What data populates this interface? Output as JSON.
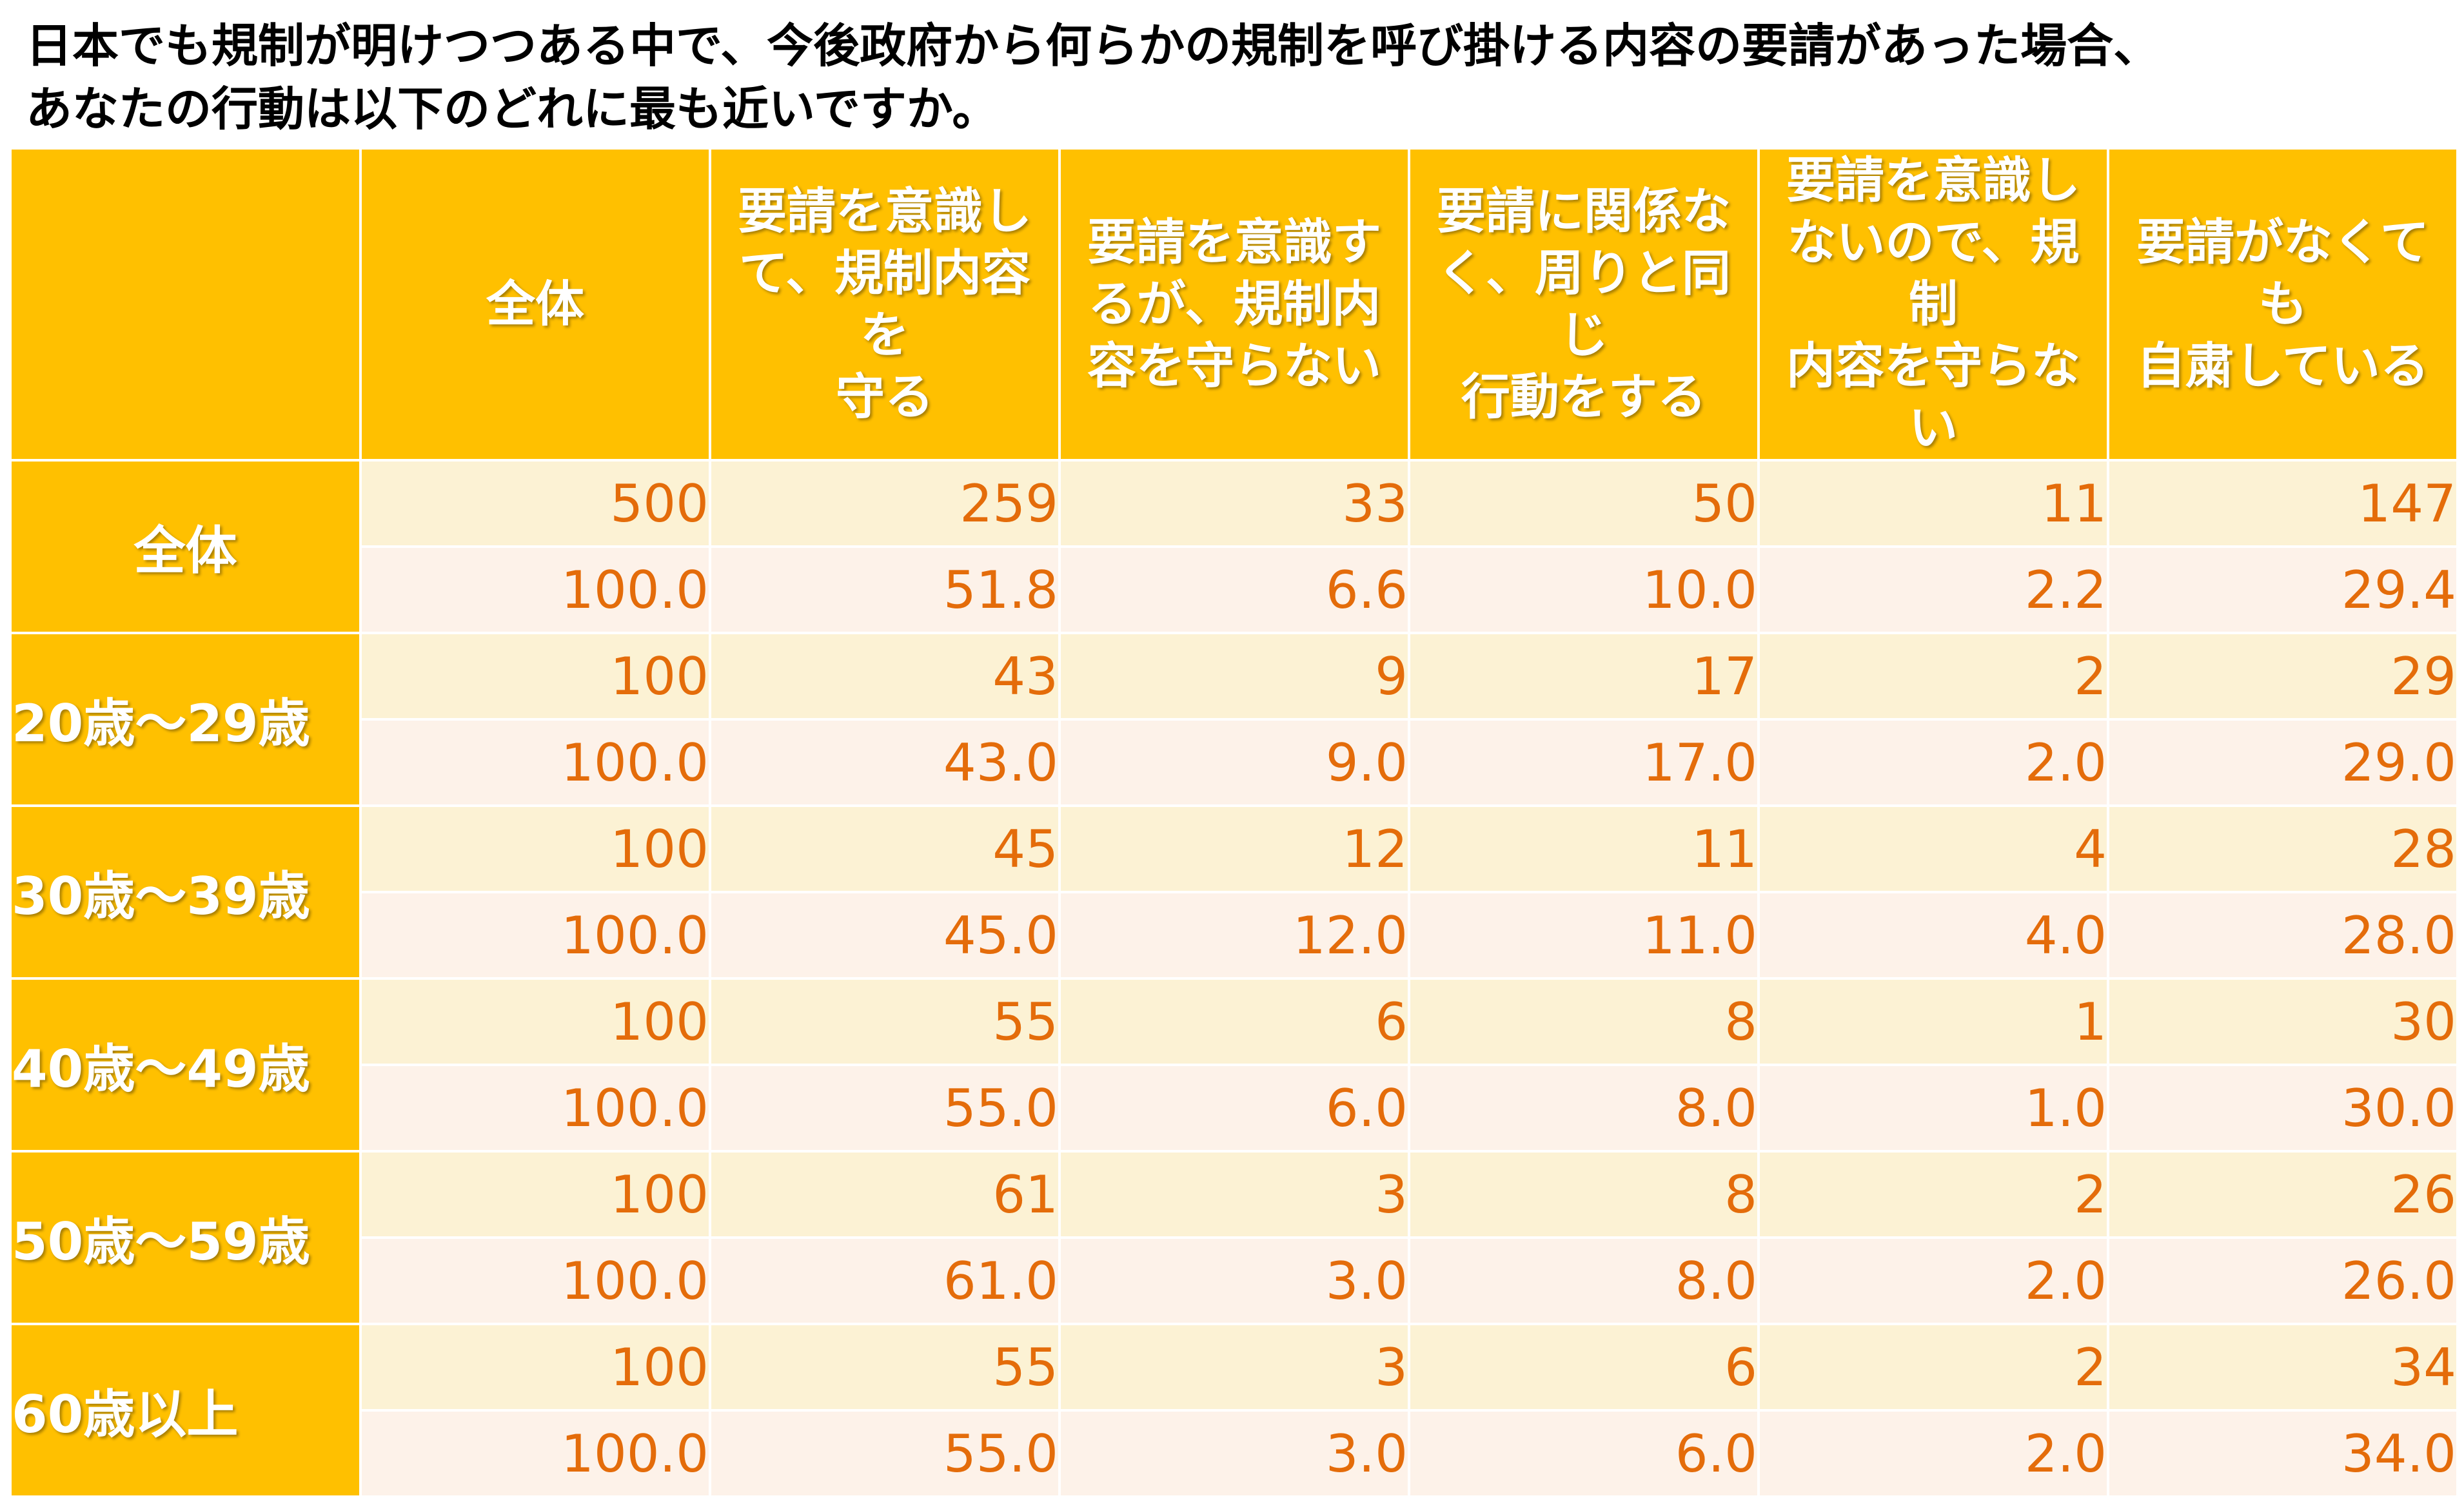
{
  "chart_data": {
    "type": "table",
    "title": "日本でも規制が明けつつある中で、今後政府から何らかの規制を呼び掛ける内容の要請があった場合、あなたの行動は以下のどれに最も近いですか。",
    "title_lines": [
      "日本でも規制が明けつつある中で、今後政府から何らかの規制を呼び掛ける内容の要請があった場合、",
      "あなたの行動は以下のどれに最も近いですか。"
    ],
    "columns": [
      "全体",
      "要請を意識して、規制内容を守る",
      "要請を意識するが、規制内容を守らない",
      "要請に関係なく、周りと同じ行動をする",
      "要請を意識しないので、規制内容を守らない",
      "要請がなくても自粛している"
    ],
    "columns_display": [
      "全体",
      "要請を意識し\nて、規制内容を\n守る",
      "要請を意識す\nるが、規制内\n容を守らない",
      "要請に関係な\nく、周りと同じ\n行動をする",
      "要請を意識し\nないので、規制\n内容を守らな\nい",
      "要請がなくても\n自粛している"
    ],
    "rows": [
      {
        "label": "全体",
        "counts": [
          "500",
          "259",
          "33",
          "50",
          "11",
          "147"
        ],
        "percents": [
          "100.0",
          "51.8",
          "6.6",
          "10.0",
          "2.2",
          "29.4"
        ]
      },
      {
        "label": "20歳～29歳",
        "counts": [
          "100",
          "43",
          "9",
          "17",
          "2",
          "29"
        ],
        "percents": [
          "100.0",
          "43.0",
          "9.0",
          "17.0",
          "2.0",
          "29.0"
        ]
      },
      {
        "label": "30歳～39歳",
        "counts": [
          "100",
          "45",
          "12",
          "11",
          "4",
          "28"
        ],
        "percents": [
          "100.0",
          "45.0",
          "12.0",
          "11.0",
          "4.0",
          "28.0"
        ]
      },
      {
        "label": "40歳～49歳",
        "counts": [
          "100",
          "55",
          "6",
          "8",
          "1",
          "30"
        ],
        "percents": [
          "100.0",
          "55.0",
          "6.0",
          "8.0",
          "1.0",
          "30.0"
        ]
      },
      {
        "label": "50歳～59歳",
        "counts": [
          "100",
          "61",
          "3",
          "8",
          "2",
          "26"
        ],
        "percents": [
          "100.0",
          "61.0",
          "3.0",
          "8.0",
          "2.0",
          "26.0"
        ]
      },
      {
        "label": "60歳以上",
        "counts": [
          "100",
          "55",
          "3",
          "6",
          "2",
          "34"
        ],
        "percents": [
          "100.0",
          "55.0",
          "3.0",
          "6.0",
          "2.0",
          "34.0"
        ]
      }
    ]
  },
  "colors": {
    "header_bg": "#FFC000",
    "header_text": "#FFFFFF",
    "count_row_bg": "#FCF2D4",
    "percent_row_bg": "#FDF2E9",
    "value_text": "#E46C0A"
  }
}
